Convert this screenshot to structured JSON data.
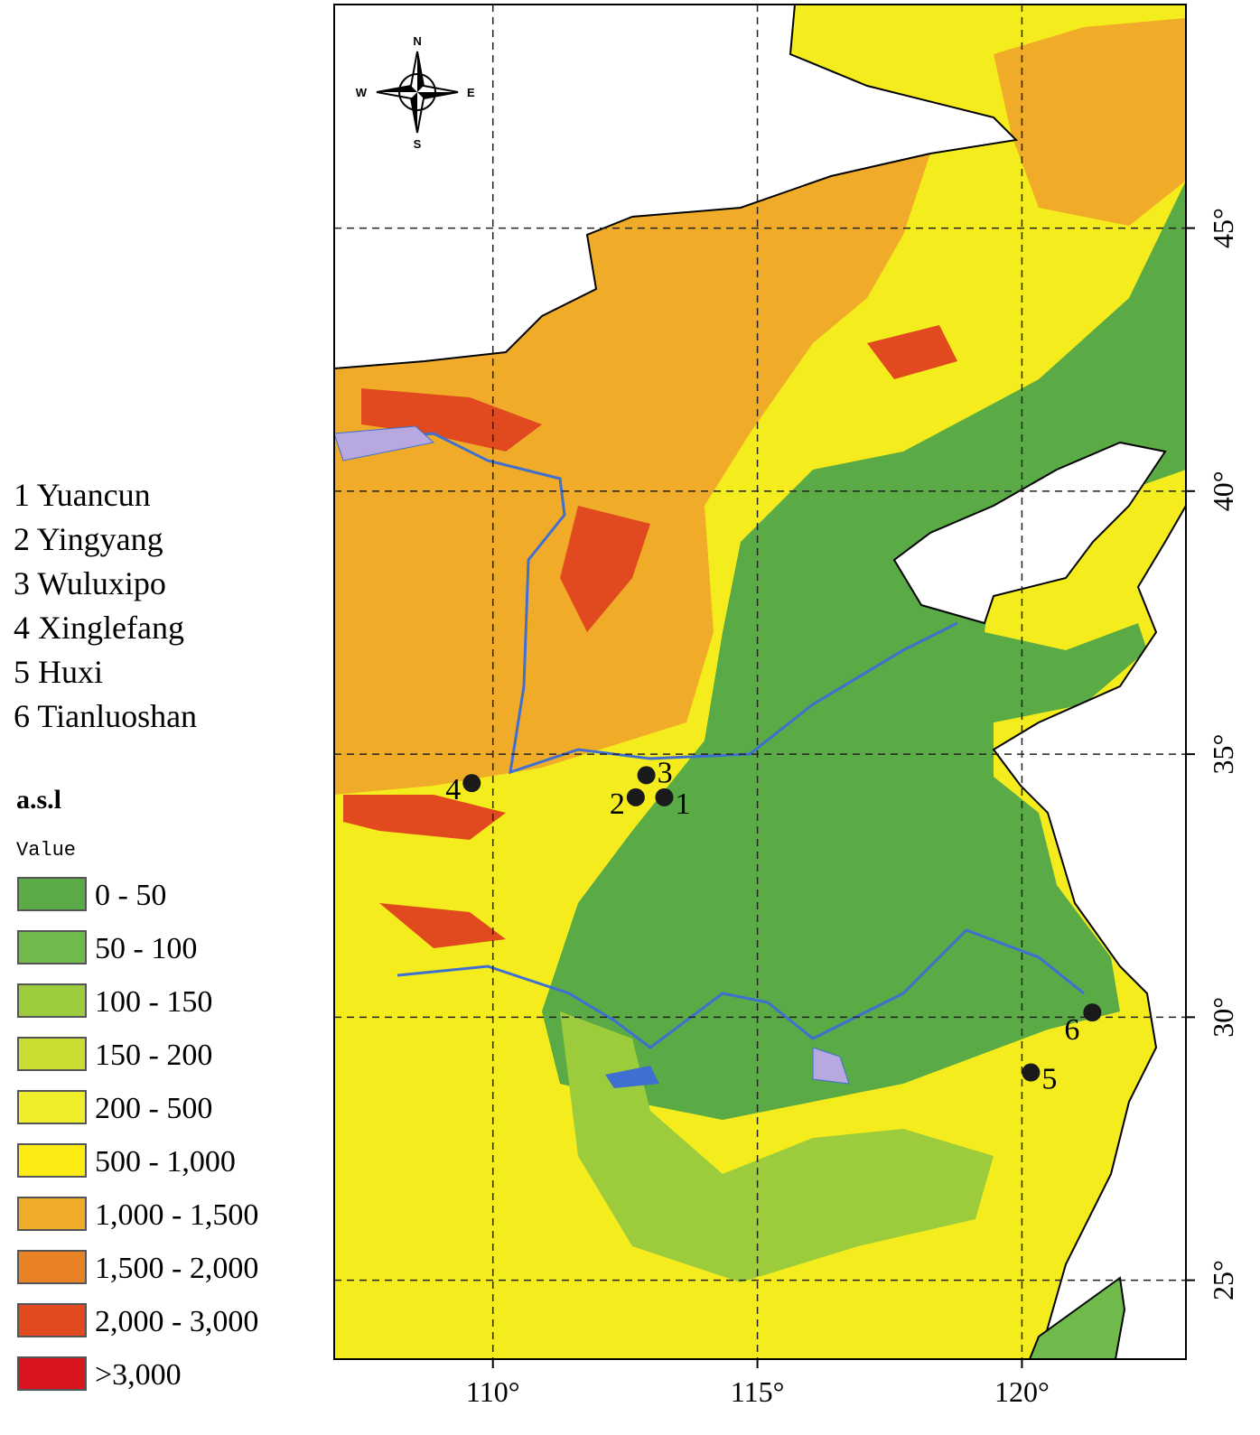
{
  "map": {
    "xlim": [
      107.0,
      123.1
    ],
    "ylim": [
      23.5,
      49.25
    ],
    "xticks": [
      {
        "value": 110,
        "label": "110°"
      },
      {
        "value": 115,
        "label": "115°"
      },
      {
        "value": 120,
        "label": "120°"
      }
    ],
    "yticks": [
      {
        "value": 25,
        "label": "25°"
      },
      {
        "value": 30,
        "label": "30°"
      },
      {
        "value": 35,
        "label": "35°"
      },
      {
        "value": 40,
        "label": "40°"
      },
      {
        "value": 45,
        "label": "45°"
      }
    ],
    "compass": {
      "n": "N",
      "s": "S",
      "e": "E",
      "w": "W"
    },
    "sites": [
      {
        "number": "1",
        "name": "Yuancun",
        "lon": 113.24,
        "lat": 34.18
      },
      {
        "number": "2",
        "name": "Yingyang",
        "lon": 112.7,
        "lat": 34.18
      },
      {
        "number": "3",
        "name": "Wuluxipo",
        "lon": 112.9,
        "lat": 34.6
      },
      {
        "number": "4",
        "name": "Xinglefang",
        "lon": 109.6,
        "lat": 34.45
      },
      {
        "number": "5",
        "name": "Huxi",
        "lon": 120.17,
        "lat": 28.95
      },
      {
        "number": "6",
        "name": "Tianluoshan",
        "lon": 121.33,
        "lat": 30.09
      }
    ],
    "legend": {
      "title": "a.s.l",
      "subtitle": "Value",
      "classes": [
        {
          "label": "0 - 50",
          "color": "#5aaa46"
        },
        {
          "label": "50 - 100",
          "color": "#6fba4a"
        },
        {
          "label": "100 - 150",
          "color": "#9ccc3c"
        },
        {
          "label": "150 - 200",
          "color": "#c8dc32"
        },
        {
          "label": "200 - 500",
          "color": "#eeee2a"
        },
        {
          "label": "500 - 1,000",
          "color": "#fcec14"
        },
        {
          "label": "1,000 - 1,500",
          "color": "#f0ac28"
        },
        {
          "label": "1,500 - 2,000",
          "color": "#e88224"
        },
        {
          "label": "2,000 - 3,000",
          "color": "#e04a1e"
        },
        {
          "label": ">3,000",
          "color": "#d8141e"
        }
      ]
    }
  }
}
